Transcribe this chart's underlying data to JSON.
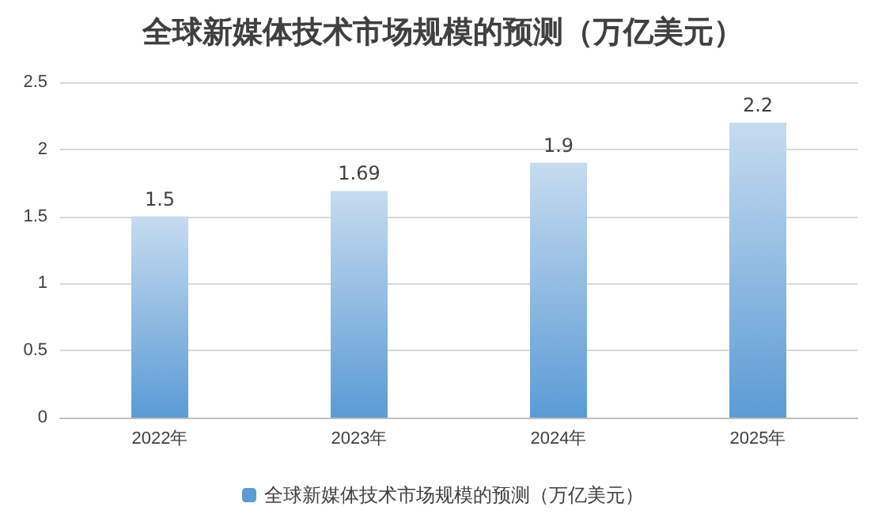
{
  "chart_data": {
    "type": "bar",
    "title": "全球新媒体技术市场规模的预测（万亿美元）",
    "categories": [
      "2022年",
      "2023年",
      "2024年",
      "2025年"
    ],
    "series": [
      {
        "name": "全球新媒体技术市场规模的预测（万亿美元）",
        "color": "#5b9bd5",
        "values": [
          1.5,
          1.69,
          1.9,
          2.2
        ]
      }
    ],
    "ylim": [
      0,
      2.5
    ],
    "yticks": [
      0,
      0.5,
      1,
      1.5,
      2,
      2.5
    ],
    "grid": "y",
    "legend": "bottom",
    "data_labels": true
  }
}
